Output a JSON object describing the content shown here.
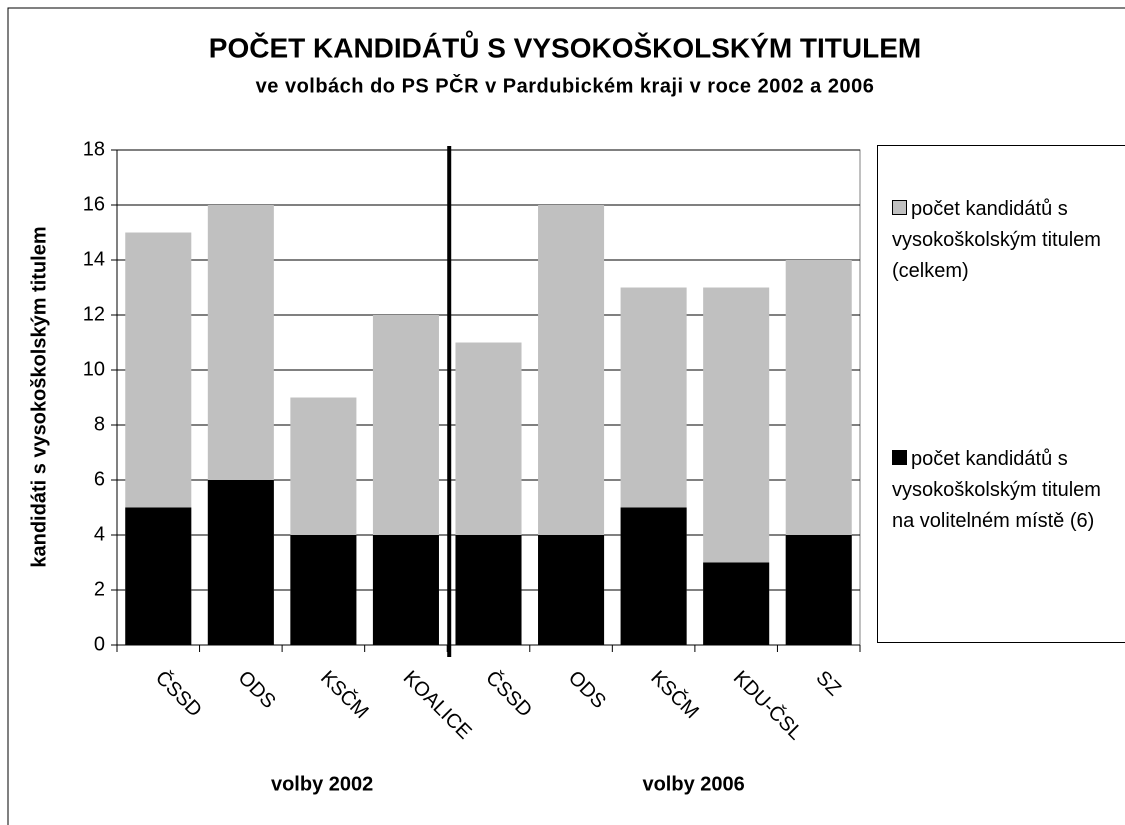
{
  "chart_data": {
    "type": "bar",
    "title": "POČET KANDIDÁTŮ S VYSOKOŠKOLSKÝM TITULEM",
    "subtitle": "ve volbách do PS PČR v Pardubickém kraji v roce 2002 a 2006",
    "y_label": "kandidáti s vysokoškolským titulem",
    "groups": [
      {
        "label": "volby 2002",
        "categories": [
          "ČSSD",
          "ODS",
          "KSČM",
          "KOALICE"
        ]
      },
      {
        "label": "volby 2006",
        "categories": [
          "ČSSD",
          "ODS",
          "KSČM",
          "KDU-ČSL",
          "SZ"
        ]
      }
    ],
    "series": [
      {
        "name": "počet kandidátů s vysokoškolským titulem (celkem)",
        "color": "#c0c0c0",
        "values": [
          15,
          16,
          9,
          12,
          11,
          16,
          13,
          13,
          14
        ]
      },
      {
        "name": "počet kandidátů s vysokoškolským titulem na volitelném místě (6)",
        "color": "#000000",
        "values": [
          5,
          6,
          4,
          4,
          4,
          4,
          5,
          3,
          4
        ]
      }
    ],
    "ylim": [
      0,
      18
    ],
    "yticks": [
      0,
      2,
      4,
      6,
      8,
      10,
      12,
      14,
      16,
      18
    ],
    "grid": true,
    "legend": "right"
  }
}
